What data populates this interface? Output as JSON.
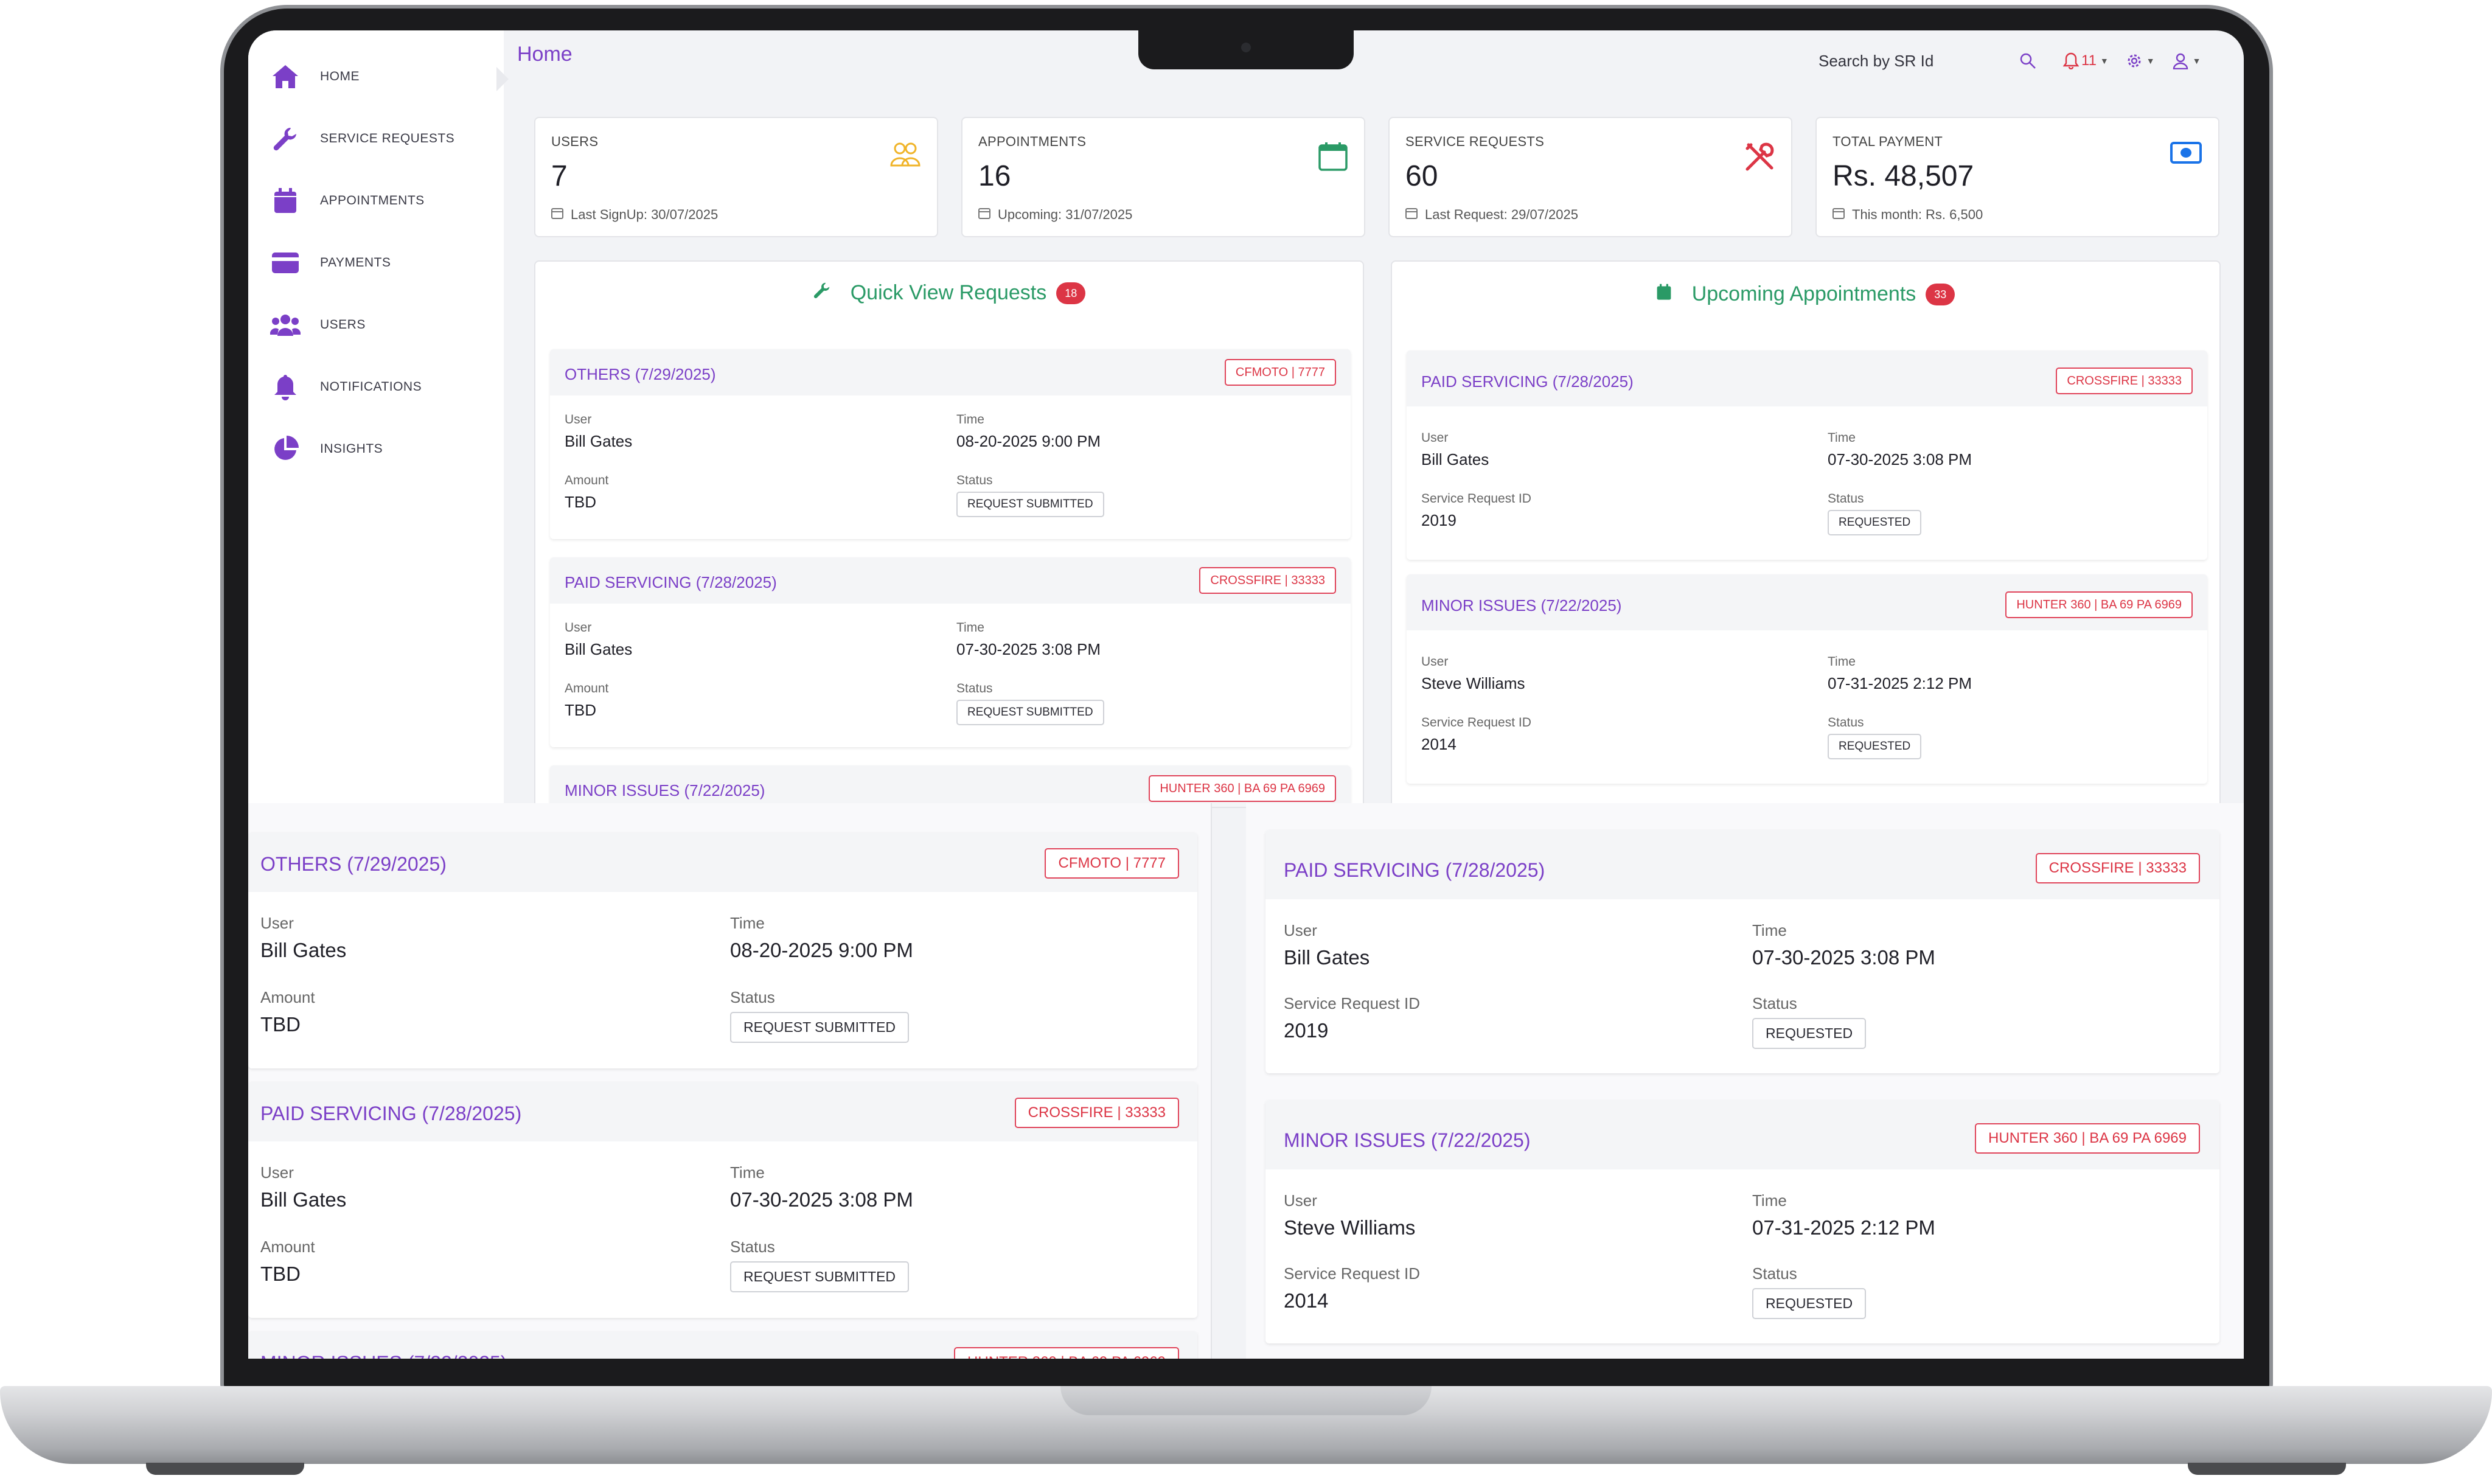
{
  "colors": {
    "accent": "#7b3fc7",
    "success": "#2a9a66",
    "danger": "#dc3545",
    "warning": "#f0b429",
    "info": "#1a73e8"
  },
  "sidebar": {
    "items": [
      {
        "label": "HOME",
        "icon": "home-icon"
      },
      {
        "label": "SERVICE REQUESTS",
        "icon": "wrench-icon"
      },
      {
        "label": "APPOINTMENTS",
        "icon": "calendar-icon"
      },
      {
        "label": "PAYMENTS",
        "icon": "credit-card-icon"
      },
      {
        "label": "USERS",
        "icon": "users-icon"
      },
      {
        "label": "NOTIFICATIONS",
        "icon": "bell-icon"
      },
      {
        "label": "INSIGHTS",
        "icon": "pie-chart-icon"
      }
    ]
  },
  "header": {
    "breadcrumb": "Home",
    "search_placeholder": "Search by SR Id",
    "notification_count": "11"
  },
  "stats": [
    {
      "label": "USERS",
      "value": "7",
      "footer": "Last SignUp: 30/07/2025",
      "icon": "users-icon"
    },
    {
      "label": "APPOINTMENTS",
      "value": "16",
      "footer": "Upcoming: 31/07/2025",
      "icon": "calendar-icon"
    },
    {
      "label": "SERVICE REQUESTS",
      "value": "60",
      "footer": "Last Request: 29/07/2025",
      "icon": "tools-icon"
    },
    {
      "label": "TOTAL PAYMENT",
      "value": "Rs. 48,507",
      "footer": "This month: Rs. 6,500",
      "icon": "money-icon"
    }
  ],
  "quick_view": {
    "title": "Quick View Requests",
    "count": "18",
    "requests": [
      {
        "title": "OTHERS (7/29/2025)",
        "tag": "CFMOTO | 7777",
        "user_label": "User",
        "user": "Bill Gates",
        "time_label": "Time",
        "time": "08-20-2025 9:00 PM",
        "amount_label": "Amount",
        "amount": "TBD",
        "status_label": "Status",
        "status": "REQUEST SUBMITTED"
      },
      {
        "title": "PAID SERVICING (7/28/2025)",
        "tag": "CROSSFIRE | 33333",
        "user_label": "User",
        "user": "Bill Gates",
        "time_label": "Time",
        "time": "07-30-2025 3:08 PM",
        "amount_label": "Amount",
        "amount": "TBD",
        "status_label": "Status",
        "status": "REQUEST SUBMITTED"
      },
      {
        "title": "MINOR ISSUES (7/22/2025)",
        "tag": "HUNTER 360 | BA 69 PA 6969"
      }
    ]
  },
  "upcoming": {
    "title": "Upcoming Appointments",
    "count": "33",
    "appointments": [
      {
        "title": "PAID SERVICING (7/28/2025)",
        "tag": "CROSSFIRE | 33333",
        "user_label": "User",
        "user": "Bill Gates",
        "time_label": "Time",
        "time": "07-30-2025 3:08 PM",
        "sr_label": "Service Request ID",
        "sr": "2019",
        "status_label": "Status",
        "status": "REQUESTED"
      },
      {
        "title": "MINOR ISSUES (7/22/2025)",
        "tag": "HUNTER 360 | BA 69 PA 6969",
        "user_label": "User",
        "user": "Steve Williams",
        "time_label": "Time",
        "time": "07-31-2025 2:12 PM",
        "sr_label": "Service Request ID",
        "sr": "2014",
        "status_label": "Status",
        "status": "REQUESTED"
      }
    ]
  }
}
